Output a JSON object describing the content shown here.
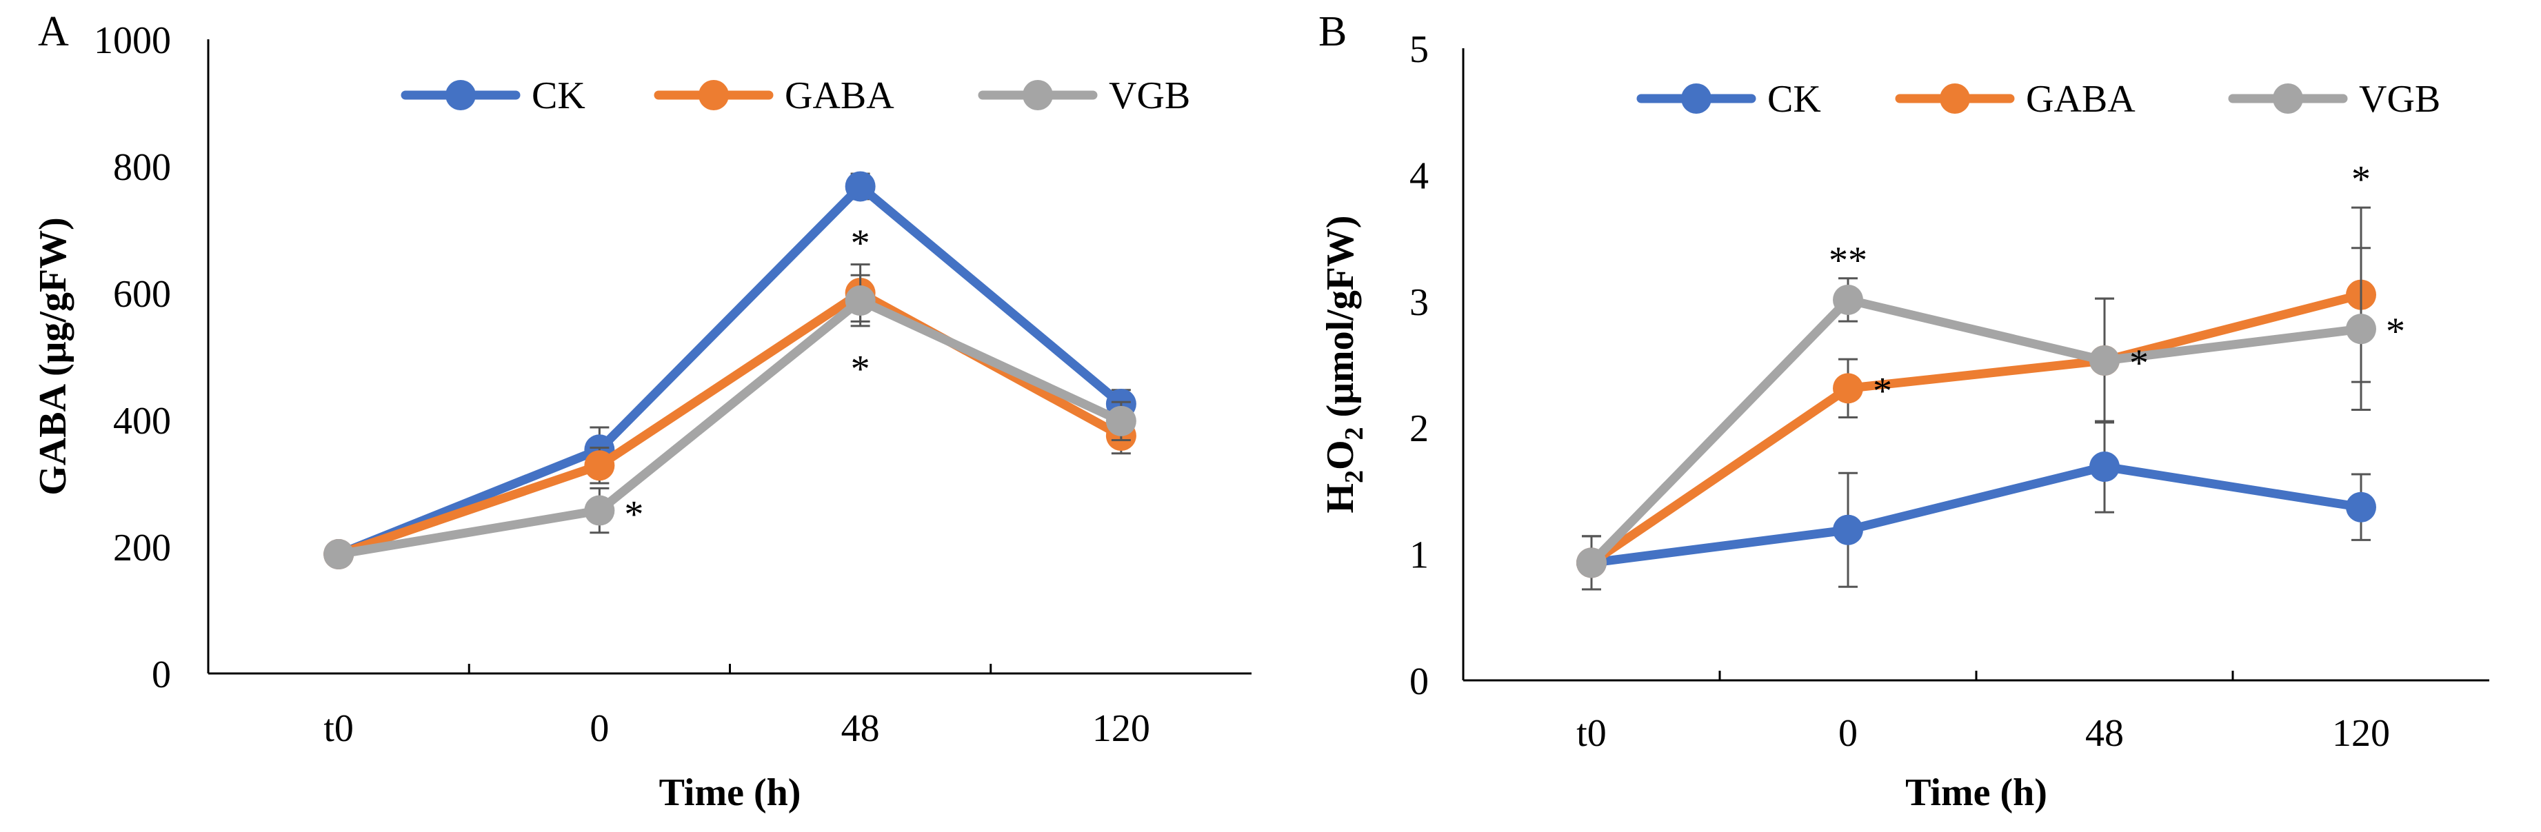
{
  "figure": {
    "colors": {
      "CK": "#4472C4",
      "GABA": "#ED7D31",
      "VGB": "#A5A5A5",
      "axis": "#000000",
      "errorbar": "#555555"
    }
  },
  "chart_data": [
    {
      "type": "line",
      "panel": "A",
      "title": "",
      "xlabel": "Time (h)",
      "ylabel": "GABA (μg/gFW)",
      "categories": [
        "t0",
        "0",
        "48",
        "120"
      ],
      "ylim": [
        0,
        1000
      ],
      "yticks": [
        0,
        200,
        400,
        600,
        800,
        1000
      ],
      "ytick_labels": [
        "0",
        "200",
        "400",
        "600",
        "800",
        "1000"
      ],
      "grid": false,
      "legend_position": "top-center",
      "series": [
        {
          "name": "CK",
          "values": [
            188,
            353,
            768,
            425
          ],
          "errors": [
            6,
            35,
            20,
            22
          ]
        },
        {
          "name": "GABA",
          "values": [
            188,
            328,
            600,
            375
          ],
          "errors": [
            6,
            28,
            45,
            28
          ]
        },
        {
          "name": "VGB",
          "values": [
            188,
            257,
            588,
            398
          ],
          "errors": [
            6,
            35,
            40,
            30
          ]
        }
      ],
      "annotations": [
        {
          "text": "*",
          "category": "0",
          "value": 255,
          "placement": "right"
        },
        {
          "text": "*",
          "category": "48",
          "value": 678,
          "placement": "above"
        },
        {
          "text": "*",
          "category": "48",
          "value": 495,
          "placement": "below"
        }
      ]
    },
    {
      "type": "line",
      "panel": "B",
      "title": "",
      "xlabel": "Time (h)",
      "ylabel_parts": [
        "H",
        "2",
        "O",
        "2",
        " (μmol/gFW)"
      ],
      "categories": [
        "t0",
        "0",
        "48",
        "120"
      ],
      "ylim": [
        0,
        5
      ],
      "yticks": [
        0,
        1,
        2,
        3,
        4,
        5
      ],
      "ytick_labels": [
        "0",
        "1",
        "2",
        "3",
        "4",
        "5"
      ],
      "grid": false,
      "legend_position": "top-center",
      "series": [
        {
          "name": "CK",
          "values": [
            0.93,
            1.19,
            1.69,
            1.37
          ],
          "errors": [
            0.21,
            0.45,
            0.36,
            0.26
          ]
        },
        {
          "name": "GABA",
          "values": [
            0.93,
            2.31,
            2.53,
            3.05
          ],
          "errors": [
            0.21,
            0.23,
            0.49,
            0.69
          ]
        },
        {
          "name": "VGB",
          "values": [
            0.93,
            3.01,
            2.53,
            2.78
          ],
          "errors": [
            0.21,
            0.17,
            0.49,
            0.64
          ]
        }
      ],
      "annotations": [
        {
          "text": "**",
          "category": "0",
          "value": 3.32,
          "placement": "above"
        },
        {
          "text": "*",
          "category": "0",
          "value": 2.31,
          "placement": "right"
        },
        {
          "text": "*",
          "category": "48",
          "value": 2.53,
          "placement": "right"
        },
        {
          "text": "*",
          "category": "120",
          "value": 3.96,
          "placement": "above"
        },
        {
          "text": "*",
          "category": "120",
          "value": 2.78,
          "placement": "right"
        }
      ]
    }
  ]
}
